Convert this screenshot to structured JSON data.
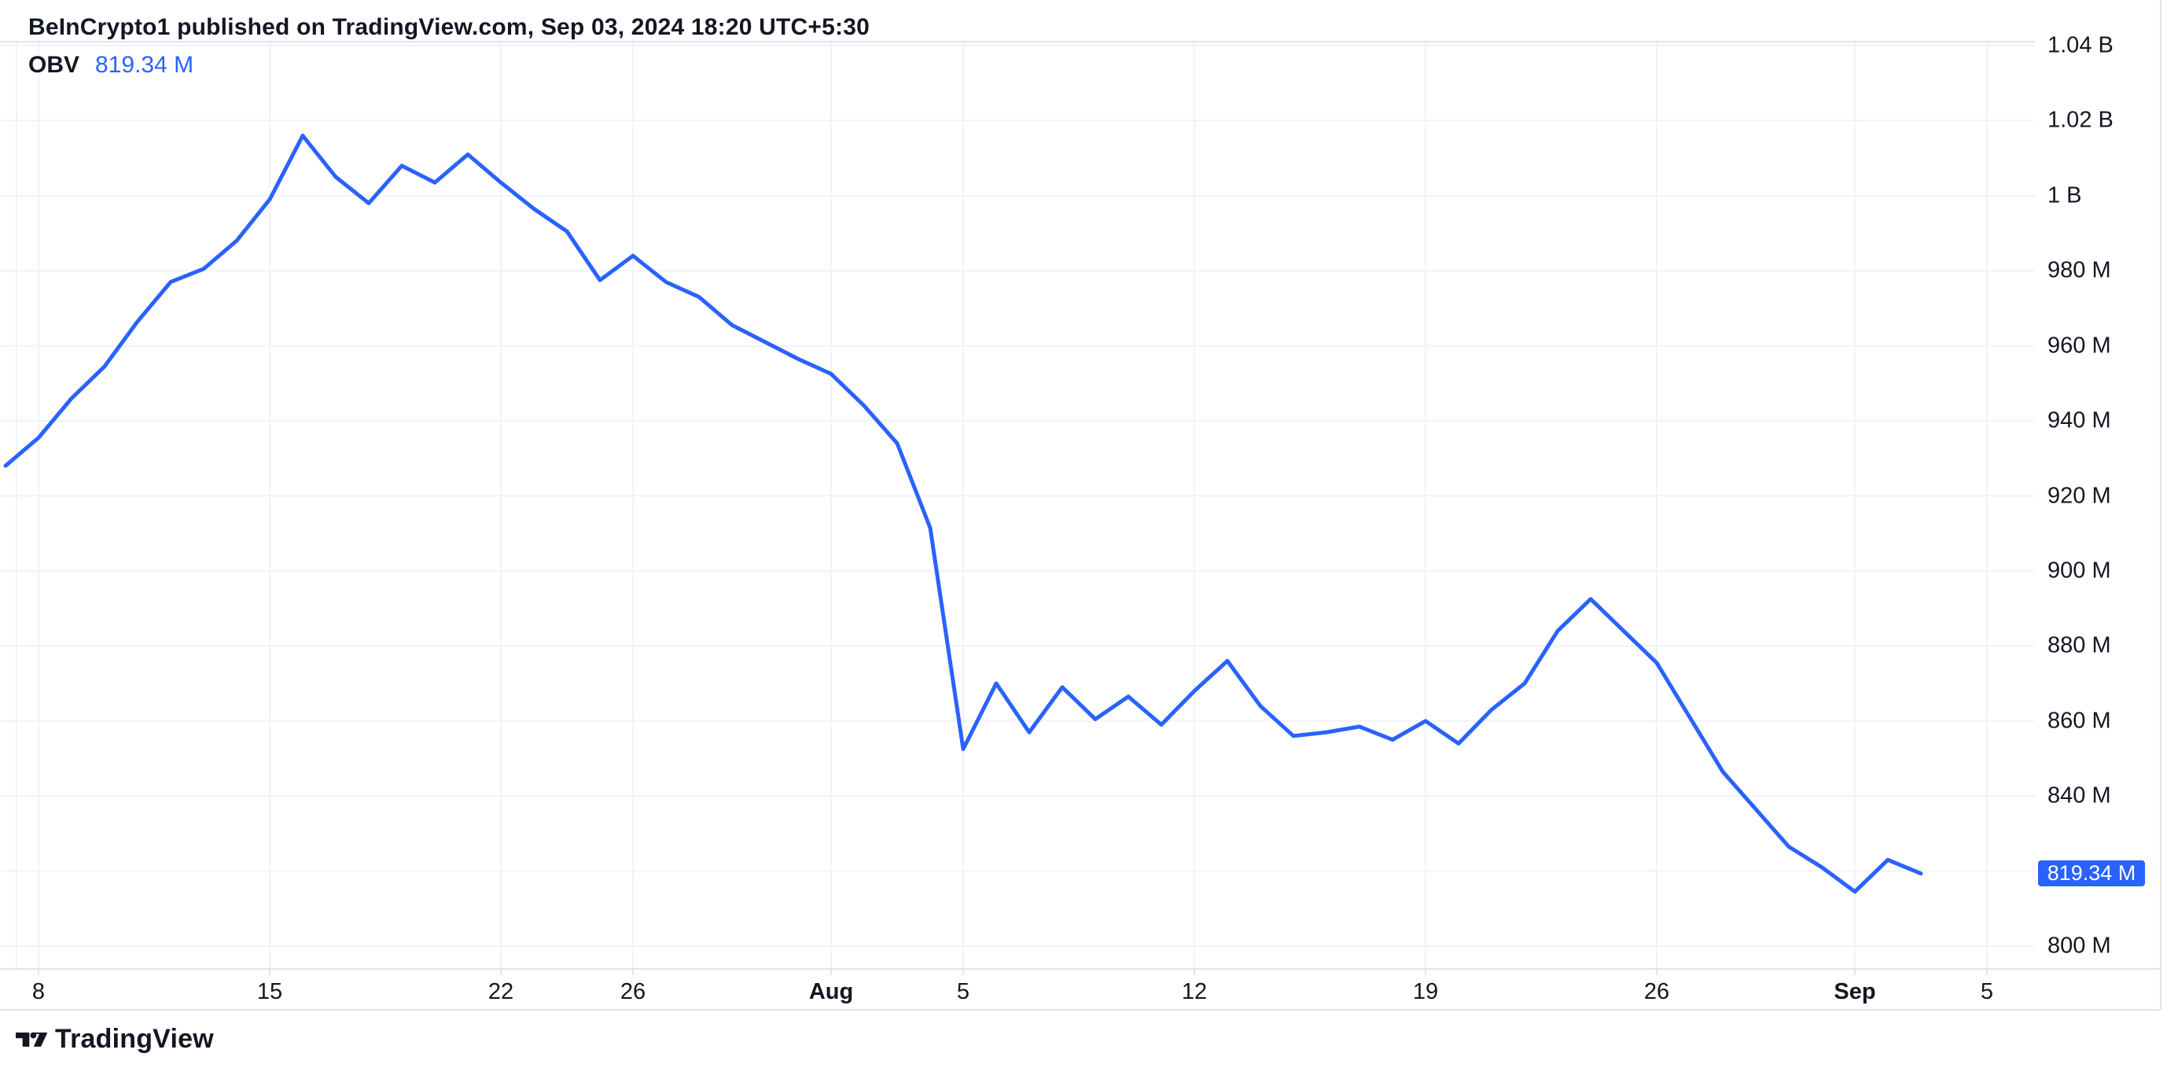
{
  "header": {
    "title": "BeInCrypto1 published on TradingView.com, Sep 03, 2024 18:20 UTC+5:30"
  },
  "legend": {
    "indicator": "OBV",
    "value": "819.34 M"
  },
  "price_badge": {
    "text": "819.34 M",
    "value": 819.34
  },
  "watermark": {
    "brand": "TradingView"
  },
  "colors": {
    "accent": "#2962ff",
    "text": "#131722",
    "grid": "#f0f3fa",
    "border": "#e0e3eb",
    "badge_text": "#ffffff",
    "background": "#ffffff"
  },
  "chart_data": {
    "type": "line",
    "title": "OBV",
    "unit": "millions",
    "interval": "1D",
    "x_start_date": "2024-07-07",
    "x_end_date": "2024-09-03",
    "grid": true,
    "legend_position": "top-left",
    "line_color": "#2962ff",
    "ylim": [
      793.9,
      1041.1
    ],
    "values": [
      928,
      935.5,
      946,
      954.5,
      966.5,
      977,
      980.5,
      988,
      999,
      1016,
      1005,
      998,
      1008,
      1003.5,
      1011,
      1003.5,
      996.5,
      990.5,
      977.5,
      984,
      977,
      973,
      965.5,
      961,
      956.5,
      952.5,
      944,
      934,
      911.5,
      852.5,
      870,
      857,
      869,
      860.5,
      866.5,
      859,
      868,
      876,
      864,
      856,
      857,
      858.5,
      855,
      860,
      854,
      863,
      870,
      884,
      892.5,
      884,
      875.5,
      861,
      846.5,
      836.5,
      826.5,
      821,
      814.5,
      823,
      819.34
    ],
    "y_axis": {
      "min": 800,
      "max": 1040,
      "step": 20,
      "labels": [
        {
          "text": "1.04 B",
          "value": 1040
        },
        {
          "text": "1.02 B",
          "value": 1020
        },
        {
          "text": "1 B",
          "value": 1000
        },
        {
          "text": "980 M",
          "value": 980
        },
        {
          "text": "960 M",
          "value": 960
        },
        {
          "text": "940 M",
          "value": 940
        },
        {
          "text": "920 M",
          "value": 920
        },
        {
          "text": "900 M",
          "value": 900
        },
        {
          "text": "880 M",
          "value": 880
        },
        {
          "text": "860 M",
          "value": 860
        },
        {
          "text": "840 M",
          "value": 840
        },
        {
          "text": "800 M",
          "value": 800
        }
      ]
    },
    "x_axis": {
      "ticks": [
        {
          "label": "8",
          "day": 1,
          "bold": false
        },
        {
          "label": "15",
          "day": 8,
          "bold": false
        },
        {
          "label": "22",
          "day": 15,
          "bold": false
        },
        {
          "label": "26",
          "day": 19,
          "bold": false
        },
        {
          "label": "Aug",
          "day": 25,
          "bold": true
        },
        {
          "label": "5",
          "day": 29,
          "bold": false
        },
        {
          "label": "12",
          "day": 36,
          "bold": false
        },
        {
          "label": "19",
          "day": 43,
          "bold": false
        },
        {
          "label": "26",
          "day": 50,
          "bold": false
        },
        {
          "label": "Sep",
          "day": 56,
          "bold": true
        },
        {
          "label": "5",
          "day": 60,
          "bold": false
        }
      ],
      "extra_grid_days": [
        0.3333
      ]
    }
  }
}
